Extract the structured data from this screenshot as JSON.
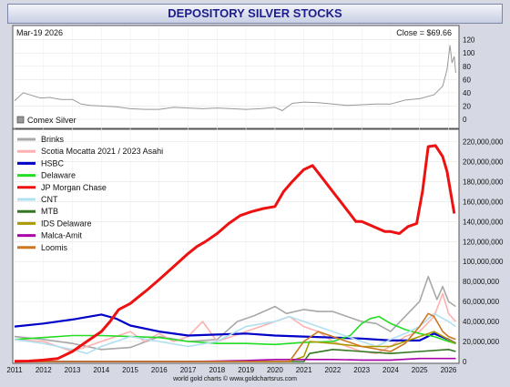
{
  "header": {
    "title": "DEPOSITORY SILVER STOCKS"
  },
  "price_panel": {
    "date": "Mar-19  2026",
    "close": "Close = $69.66",
    "legend_label": "Comex Silver",
    "legend_color": "#999999",
    "y_ticks": [
      "0",
      "20",
      "40",
      "60",
      "80",
      "100",
      "120"
    ]
  },
  "footer": {
    "credit": "world gold charts © www.goldchartsrus.com"
  },
  "chart_data": [
    {
      "type": "line",
      "xlim": [
        2011,
        2026.3
      ],
      "ylim": [
        0,
        125
      ],
      "y_ticks": [
        0,
        20,
        40,
        60,
        80,
        100,
        120
      ],
      "series": [
        {
          "name": "Comex Silver",
          "color": "#999999",
          "x": [
            2011,
            2011.3,
            2011.6,
            2011.9,
            2012.2,
            2012.6,
            2013.0,
            2013.3,
            2013.6,
            2014.0,
            2014.5,
            2015.0,
            2015.5,
            2016.0,
            2016.5,
            2017.0,
            2017.5,
            2018.0,
            2018.5,
            2019.0,
            2019.5,
            2020.0,
            2020.25,
            2020.6,
            2021.0,
            2021.5,
            2022.0,
            2022.5,
            2023.0,
            2023.5,
            2024.0,
            2024.5,
            2025.0,
            2025.5,
            2025.8,
            2025.95,
            2026.05,
            2026.12,
            2026.2,
            2026.25
          ],
          "y": [
            28,
            40,
            36,
            32,
            33,
            30,
            30,
            23,
            21,
            20,
            19,
            16,
            15,
            15,
            18,
            17,
            16,
            17,
            16,
            15,
            16,
            18,
            13,
            24,
            26,
            25,
            23,
            21,
            22,
            23,
            23,
            29,
            31,
            37,
            50,
            75,
            112,
            85,
            95,
            70
          ]
        }
      ]
    },
    {
      "type": "line",
      "xlim": [
        2011,
        2026.3
      ],
      "ylim": [
        0,
        225000000
      ],
      "x_ticks": [
        "2011",
        "2012",
        "2013",
        "2014",
        "2015",
        "2016",
        "2017",
        "2018",
        "2019",
        "2020",
        "2021",
        "2022",
        "2023",
        "2024",
        "2025",
        "2026"
      ],
      "y_ticks": [
        "0",
        "20,000,000",
        "40,000,000",
        "60,000,000",
        "80,000,000",
        "100,000,000",
        "120,000,000",
        "140,000,000",
        "160,000,000",
        "180,000,000",
        "200,000,000",
        "220,000,000"
      ],
      "series": [
        {
          "name": "Brinks",
          "color": "#a8a8a8",
          "x": [
            2011,
            2012,
            2013,
            2014,
            2015,
            2016,
            2017,
            2018,
            2018.7,
            2019.3,
            2020,
            2020.4,
            2021,
            2021.5,
            2022,
            2022.5,
            2023,
            2023.5,
            2024,
            2024.5,
            2025,
            2025.3,
            2025.6,
            2025.8,
            2026,
            2026.25
          ],
          "y": [
            25000000,
            22000000,
            18000000,
            12000000,
            14000000,
            25000000,
            20000000,
            22000000,
            40000000,
            46000000,
            55000000,
            48000000,
            52000000,
            50000000,
            50000000,
            45000000,
            40000000,
            38000000,
            30000000,
            45000000,
            60000000,
            85000000,
            62000000,
            75000000,
            60000000,
            55000000
          ]
        },
        {
          "name": "Scotia Mocatta 2021 / 2023 Asahi",
          "color": "#ffb0b0",
          "x": [
            2011,
            2012,
            2013,
            2014,
            2015,
            2015.5,
            2016,
            2016.5,
            2017,
            2017.5,
            2018,
            2018.5,
            2019,
            2019.5,
            2020,
            2020.5,
            2021,
            2021.5,
            2022,
            2022.5,
            2023,
            2023.5,
            2024,
            2024.5,
            2025,
            2025.5,
            2025.8,
            2026,
            2026.25
          ],
          "y": [
            22000000,
            20000000,
            10000000,
            20000000,
            30000000,
            20000000,
            28000000,
            20000000,
            25000000,
            40000000,
            20000000,
            25000000,
            30000000,
            35000000,
            40000000,
            45000000,
            35000000,
            30000000,
            20000000,
            15000000,
            10000000,
            8000000,
            15000000,
            25000000,
            30000000,
            45000000,
            68000000,
            48000000,
            40000000
          ]
        },
        {
          "name": "HSBC",
          "color": "#0000c8",
          "x": [
            2011,
            2012,
            2013,
            2014,
            2014.5,
            2015,
            2016,
            2017,
            2018,
            2019,
            2020,
            2021,
            2022,
            2023,
            2024,
            2025,
            2025.5,
            2026,
            2026.25
          ],
          "y": [
            35000000,
            38000000,
            42000000,
            47000000,
            43000000,
            36000000,
            30000000,
            26000000,
            27000000,
            28000000,
            26000000,
            25000000,
            24000000,
            23000000,
            21000000,
            21000000,
            28000000,
            22000000,
            18000000
          ]
        },
        {
          "name": "Delaware",
          "color": "#22dd22",
          "x": [
            2011,
            2012,
            2013,
            2014,
            2015,
            2016,
            2017,
            2018,
            2019,
            2020,
            2021,
            2022,
            2022.6,
            2023,
            2023.3,
            2023.6,
            2024,
            2024.5,
            2025,
            2025.5,
            2026,
            2026.25
          ],
          "y": [
            22000000,
            24000000,
            26000000,
            26000000,
            25000000,
            24000000,
            20000000,
            18000000,
            18000000,
            17000000,
            19000000,
            20000000,
            26000000,
            38000000,
            43000000,
            45000000,
            38000000,
            32000000,
            28000000,
            25000000,
            20000000,
            18000000
          ]
        },
        {
          "name": "JP Morgan Chase",
          "color": "#ee1111",
          "x": [
            2011,
            2011.5,
            2012,
            2012.5,
            2013,
            2013.5,
            2014,
            2014.3,
            2014.6,
            2015,
            2015.3,
            2015.6,
            2016,
            2016.5,
            2017,
            2017.3,
            2017.6,
            2018,
            2018.4,
            2018.8,
            2019.2,
            2019.6,
            2020,
            2020.3,
            2020.6,
            2021,
            2021.3,
            2021.6,
            2022,
            2022.4,
            2022.8,
            2023,
            2023.4,
            2023.8,
            2024,
            2024.3,
            2024.6,
            2024.9,
            2025.1,
            2025.3,
            2025.55,
            2025.8,
            2025.95,
            2026.1,
            2026.2
          ],
          "y": [
            200000,
            500000,
            1500000,
            3000000,
            10000000,
            20000000,
            30000000,
            40000000,
            52000000,
            58000000,
            65000000,
            72000000,
            82000000,
            95000000,
            108000000,
            115000000,
            120000000,
            128000000,
            138000000,
            146000000,
            150000000,
            153000000,
            155000000,
            170000000,
            180000000,
            192000000,
            196000000,
            185000000,
            170000000,
            155000000,
            140000000,
            140000000,
            135000000,
            130000000,
            130000000,
            128000000,
            135000000,
            138000000,
            170000000,
            215000000,
            216000000,
            205000000,
            190000000,
            165000000,
            148000000
          ]
        },
        {
          "name": "CNT",
          "color": "#b0e0f0",
          "x": [
            2011,
            2012,
            2013,
            2013.5,
            2014,
            2015,
            2016,
            2017,
            2018,
            2019,
            2020,
            2020.5,
            2021,
            2022,
            2023,
            2023.5,
            2024,
            2024.5,
            2025,
            2025.5,
            2026,
            2026.25
          ],
          "y": [
            22000000,
            18000000,
            12000000,
            8000000,
            15000000,
            25000000,
            20000000,
            15000000,
            20000000,
            35000000,
            40000000,
            45000000,
            40000000,
            30000000,
            20000000,
            15000000,
            22000000,
            28000000,
            35000000,
            48000000,
            40000000,
            35000000
          ]
        },
        {
          "name": "MTB",
          "color": "#337722",
          "x": [
            2011,
            2013,
            2015,
            2017,
            2019,
            2021,
            2021.2,
            2022,
            2023,
            2024,
            2025,
            2026,
            2026.25
          ],
          "y": [
            0,
            0,
            0,
            0,
            0,
            0,
            8000000,
            12000000,
            10000000,
            8000000,
            10000000,
            12000000,
            10000000
          ]
        },
        {
          "name": "IDS Delaware",
          "color": "#aa9900",
          "x": [
            2011,
            2013,
            2015,
            2017,
            2019,
            2020.5,
            2021,
            2021.2,
            2022,
            2023,
            2024,
            2025,
            2025.5,
            2026,
            2026.25
          ],
          "y": [
            0,
            0,
            0,
            0,
            0,
            0,
            5000000,
            20000000,
            18000000,
            15000000,
            15000000,
            25000000,
            30000000,
            22000000,
            18000000
          ]
        },
        {
          "name": "Malca-Amit",
          "color": "#aa00aa",
          "x": [
            2011,
            2013,
            2015,
            2017,
            2018,
            2019,
            2020,
            2021,
            2022,
            2023,
            2024,
            2025,
            2026,
            2026.25
          ],
          "y": [
            0,
            0,
            0,
            0,
            500000,
            1000000,
            2000000,
            2000000,
            2000000,
            1500000,
            1500000,
            3000000,
            3000000,
            3000000
          ]
        },
        {
          "name": "Loomis",
          "color": "#cc7722",
          "x": [
            2011,
            2013,
            2015,
            2017,
            2019,
            2020.5,
            2021,
            2021.5,
            2022,
            2023,
            2024,
            2024.5,
            2025,
            2025.3,
            2025.5,
            2025.8,
            2026,
            2026.25
          ],
          "y": [
            0,
            0,
            0,
            0,
            0,
            0,
            20000000,
            30000000,
            25000000,
            15000000,
            10000000,
            18000000,
            35000000,
            48000000,
            45000000,
            30000000,
            25000000,
            22000000
          ]
        }
      ]
    }
  ]
}
